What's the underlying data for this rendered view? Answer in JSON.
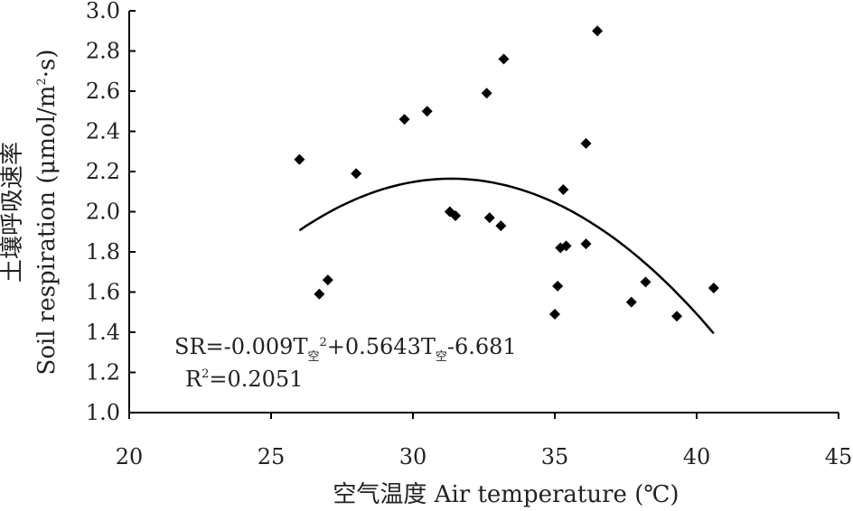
{
  "chart_data": {
    "type": "scatter",
    "xlabel": "空气温度 Air temperature (℃)",
    "ylabel_zh": "土壤呼吸速率",
    "ylabel_en": "Soil respiration (μmol/m",
    "ylabel_sup": "2",
    "ylabel_tail": "·s)",
    "xlim": [
      20,
      45
    ],
    "ylim": [
      1.0,
      3.0
    ],
    "x_ticks": [
      "20",
      "25",
      "30",
      "35",
      "40",
      "45"
    ],
    "y_ticks": [
      "1.0",
      "1.2",
      "1.4",
      "1.6",
      "1.8",
      "2.0",
      "2.2",
      "2.4",
      "2.6",
      "2.8",
      "3.0"
    ],
    "grid": false,
    "points": [
      {
        "x": 26.0,
        "y": 2.26
      },
      {
        "x": 26.7,
        "y": 1.59
      },
      {
        "x": 27.0,
        "y": 1.66
      },
      {
        "x": 28.0,
        "y": 2.19
      },
      {
        "x": 29.7,
        "y": 2.46
      },
      {
        "x": 30.5,
        "y": 2.5
      },
      {
        "x": 31.3,
        "y": 2.0
      },
      {
        "x": 31.5,
        "y": 1.98
      },
      {
        "x": 32.6,
        "y": 2.59
      },
      {
        "x": 32.7,
        "y": 1.97
      },
      {
        "x": 33.1,
        "y": 1.93
      },
      {
        "x": 33.2,
        "y": 2.76
      },
      {
        "x": 35.0,
        "y": 1.49
      },
      {
        "x": 35.1,
        "y": 1.63
      },
      {
        "x": 35.2,
        "y": 1.82
      },
      {
        "x": 35.3,
        "y": 2.11
      },
      {
        "x": 35.4,
        "y": 1.83
      },
      {
        "x": 36.1,
        "y": 2.34
      },
      {
        "x": 36.1,
        "y": 1.84
      },
      {
        "x": 36.5,
        "y": 2.9
      },
      {
        "x": 37.7,
        "y": 1.55
      },
      {
        "x": 38.2,
        "y": 1.65
      },
      {
        "x": 39.3,
        "y": 1.48
      },
      {
        "x": 40.6,
        "y": 1.62
      }
    ],
    "fit": {
      "type": "line",
      "x_range": [
        26.0,
        40.6
      ],
      "coefficients": {
        "a": -0.009,
        "b": 0.5643,
        "c": -6.681
      }
    },
    "equation": {
      "part1": "SR=-0.009T",
      "sub": "空",
      "sup": "2",
      "part2": "+0.5643T",
      "part3": "-6.681",
      "r2_prefix": "R",
      "r2_sup": "2",
      "r2_value": "=0.2051"
    }
  }
}
